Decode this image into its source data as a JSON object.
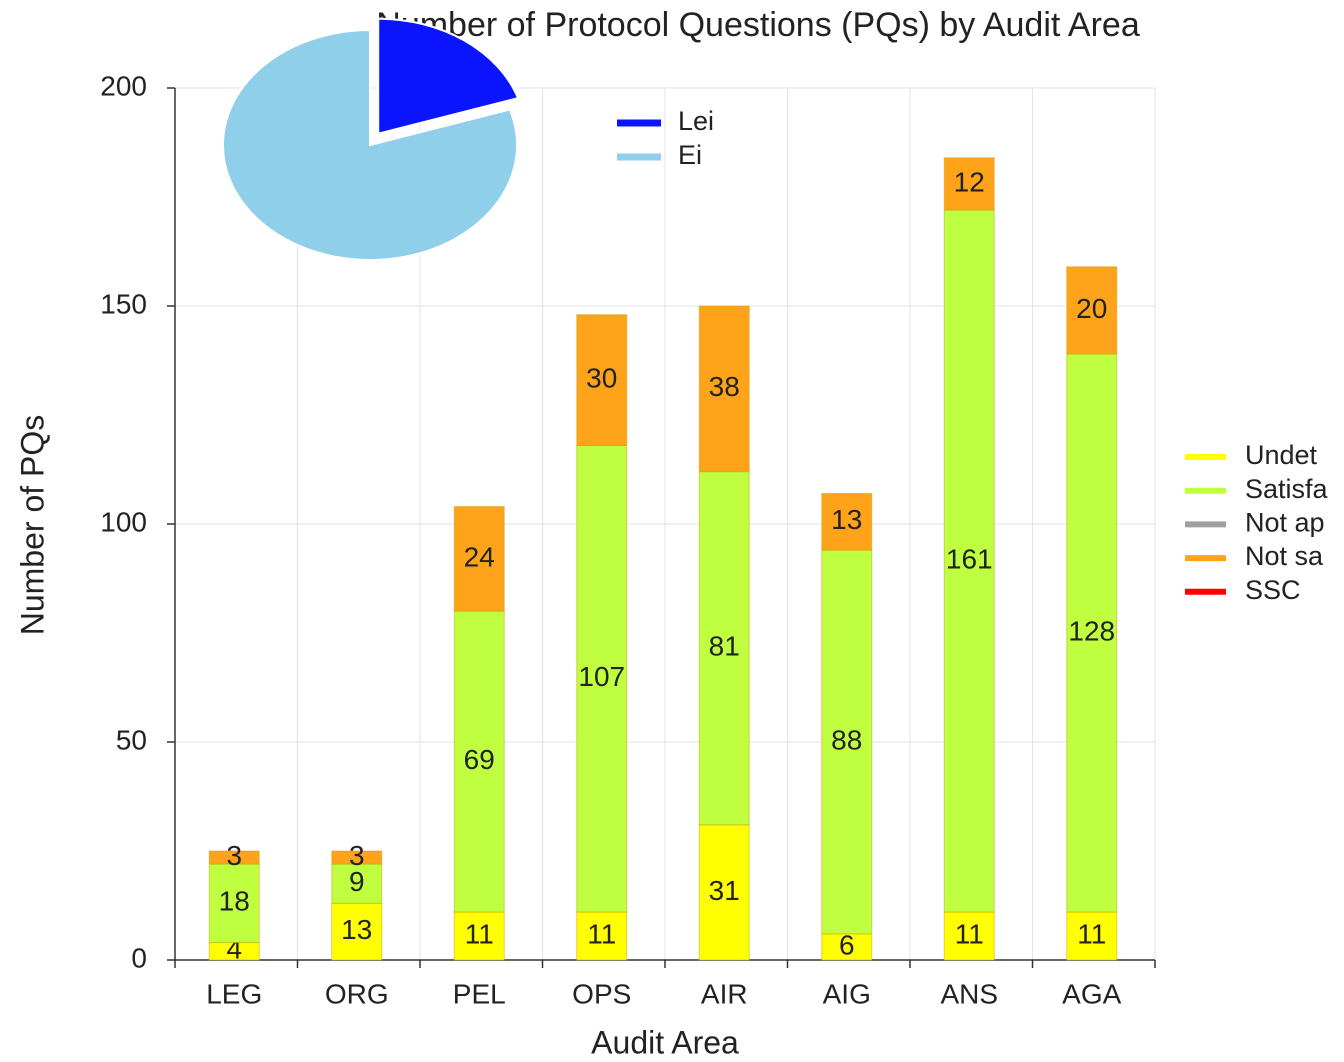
{
  "chart_data": [
    {
      "type": "bar",
      "stacked": true,
      "title": "Number of Protocol Questions (PQs) by Audit Area",
      "x_label": "Audit Area",
      "y_label": "Number of PQs",
      "categories": [
        "LEG",
        "ORG",
        "PEL",
        "OPS",
        "AIR",
        "AIG",
        "ANS",
        "AGA"
      ],
      "series": [
        {
          "name": "Undet",
          "color": "#ffff00",
          "values": [
            4,
            13,
            11,
            11,
            31,
            6,
            11,
            11
          ]
        },
        {
          "name": "Satisfa",
          "color": "#bfff3f",
          "values": [
            18,
            9,
            69,
            107,
            81,
            88,
            161,
            128
          ]
        },
        {
          "name": "Not ap",
          "color": "#a0a0a0",
          "values": [
            0,
            0,
            0,
            0,
            0,
            0,
            0,
            0
          ]
        },
        {
          "name": "Not sa",
          "color": "#ffa31a",
          "values": [
            3,
            3,
            24,
            30,
            38,
            13,
            12,
            20
          ]
        },
        {
          "name": "SSC",
          "color": "#ff0000",
          "values": [
            0,
            0,
            0,
            0,
            0,
            0,
            0,
            0
          ]
        }
      ],
      "ylim": [
        0,
        200
      ],
      "yticks": [
        0,
        50,
        100,
        150,
        200
      ],
      "grid": true,
      "legend": "right"
    },
    {
      "type": "pie",
      "categories": [
        "Lei",
        "Ei"
      ],
      "values": [
        20,
        80
      ],
      "colors": [
        "#0a14ff",
        "#8fcfea"
      ],
      "legend": "right"
    }
  ]
}
